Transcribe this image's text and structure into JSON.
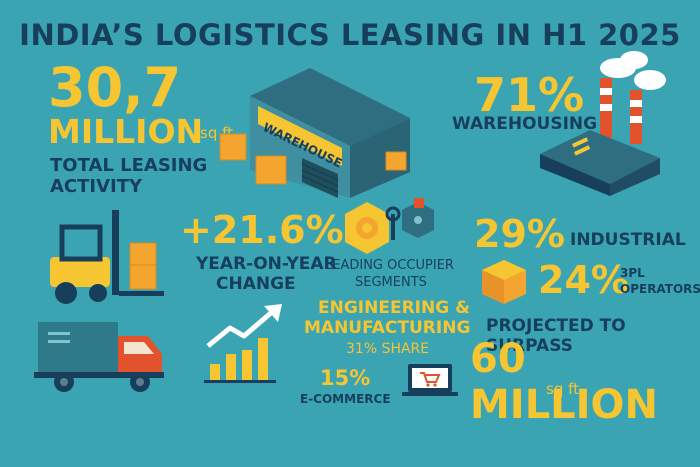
{
  "title": "INDIA’S LOGISTICS LEASING IN H1 2025",
  "total": {
    "value": "30,7",
    "unit_big": "MILLION",
    "unit_small": "sq ft",
    "label_line1": "TOTAL LEASING",
    "label_line2": "ACTIVITY"
  },
  "warehouse_sign": "WAREHOUSE",
  "growth": {
    "value": "+21.6%",
    "label_line1": "YEAR-ON-YEAR",
    "label_line2": "CHANGE"
  },
  "occupier": {
    "heading_line1": "LEADING OCCUPIER",
    "heading_line2": "SEGMENTS",
    "segment_line1": "ENGINEERING &",
    "segment_line2": "MANUFACTURING",
    "share": "31% SHARE"
  },
  "ecommerce": {
    "value": "15%",
    "label": "E-COMMERCE"
  },
  "warehousing": {
    "value": "71%",
    "label": "WAREHOUSING"
  },
  "industrial": {
    "value": "29%",
    "label": "INDUSTRIAL"
  },
  "third_party": {
    "value": "24%",
    "label_line1": "3PL",
    "label_line2": "OPERATORS"
  },
  "projection": {
    "label": "PROJECTED TO SURPASS",
    "value": "60 MILLION",
    "unit": "sq ft"
  },
  "colors": {
    "background": "#3aa4b3",
    "accent_yellow": "#f6c532",
    "navy": "#173f5c",
    "box_orange": "#f4a530",
    "truck_red": "#e2532d"
  },
  "icons": [
    "warehouse-icon",
    "factory-icon",
    "forklift-icon",
    "truck-icon",
    "growth-chart-icon",
    "gear-icon",
    "laptop-cart-icon",
    "box-icon"
  ]
}
